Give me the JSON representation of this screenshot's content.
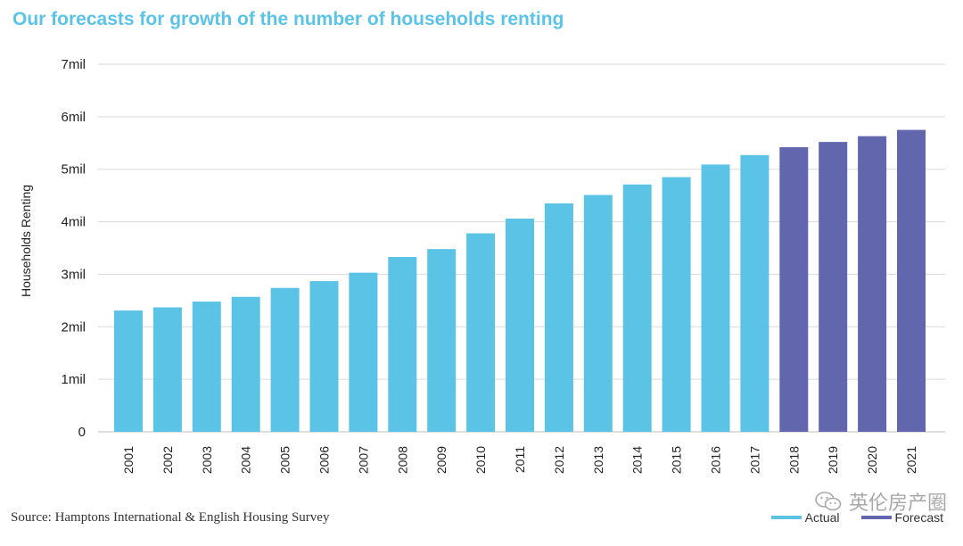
{
  "title": "Our forecasts for growth of the number of households renting",
  "source": "Source: Hamptons International  &  English Housing Survey",
  "watermark": "英伦房产圈",
  "colors": {
    "actual": "#5bc4e6",
    "forecast": "#6267ad",
    "title": "#5bc4e6",
    "grid": "#d9d9d9"
  },
  "chart_data": {
    "type": "bar",
    "title": "Our forecasts for growth of the number of households renting",
    "xlabel": "",
    "ylabel": "Households Renting",
    "ylim": [
      0,
      7
    ],
    "yticks": [
      0,
      1,
      2,
      3,
      4,
      5,
      6,
      7
    ],
    "ytick_labels": [
      "0",
      "1mil",
      "2mil",
      "3mil",
      "4mil",
      "5mil",
      "6mil",
      "7mil"
    ],
    "grid": true,
    "legend_position": "bottom-right",
    "categories": [
      "2001",
      "2002",
      "2003",
      "2004",
      "2005",
      "2006",
      "2007",
      "2008",
      "2009",
      "2010",
      "2011",
      "2012",
      "2013",
      "2014",
      "2015",
      "2016",
      "2017",
      "2018",
      "2019",
      "2020",
      "2021"
    ],
    "series": [
      {
        "name": "Actual",
        "values": [
          2.31,
          2.37,
          2.48,
          2.57,
          2.74,
          2.87,
          3.03,
          3.33,
          3.48,
          3.78,
          4.06,
          4.35,
          4.51,
          4.71,
          4.85,
          5.09,
          5.27,
          null,
          null,
          null,
          null
        ]
      },
      {
        "name": "Forecast",
        "values": [
          null,
          null,
          null,
          null,
          null,
          null,
          null,
          null,
          null,
          null,
          null,
          null,
          null,
          null,
          null,
          null,
          null,
          5.42,
          5.52,
          5.63,
          5.75
        ]
      }
    ]
  }
}
